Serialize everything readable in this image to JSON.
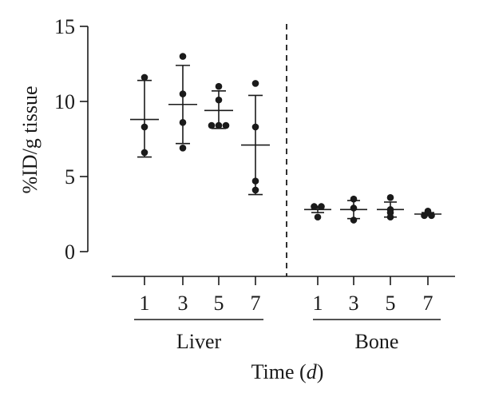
{
  "chart_data": {
    "type": "scatter",
    "ylabel": "%ID/g tissue",
    "xlabel_prefix": "Time (",
    "xlabel_unit": "d",
    "xlabel_suffix": ")",
    "ylim": [
      0,
      15
    ],
    "yticks": [
      "0",
      "5",
      "10",
      "15"
    ],
    "groups": [
      {
        "name": "Liver",
        "categories": [
          {
            "label": "1",
            "mean": 8.8,
            "sd_low": 6.3,
            "sd_high": 11.4,
            "points": [
              11.6,
              8.3,
              6.6
            ]
          },
          {
            "label": "3",
            "mean": 9.8,
            "sd_low": 7.2,
            "sd_high": 12.4,
            "points": [
              13.0,
              10.5,
              8.6,
              6.9
            ]
          },
          {
            "label": "5",
            "mean": 9.4,
            "sd_low": 8.2,
            "sd_high": 10.7,
            "points": [
              11.0,
              10.1,
              8.4,
              8.4,
              8.4
            ]
          },
          {
            "label": "7",
            "mean": 7.1,
            "sd_low": 3.8,
            "sd_high": 10.4,
            "points": [
              11.2,
              8.3,
              4.7,
              4.1
            ]
          }
        ]
      },
      {
        "name": "Bone",
        "categories": [
          {
            "label": "1",
            "mean": 2.8,
            "sd_low": 2.6,
            "sd_high": 3.0,
            "points": [
              3.0,
              3.0,
              2.3
            ]
          },
          {
            "label": "3",
            "mean": 2.8,
            "sd_low": 2.2,
            "sd_high": 3.4,
            "points": [
              3.5,
              2.9,
              2.1
            ]
          },
          {
            "label": "5",
            "mean": 2.8,
            "sd_low": 2.3,
            "sd_high": 3.3,
            "points": [
              3.6,
              2.8,
              2.6,
              2.3
            ]
          },
          {
            "label": "7",
            "mean": 2.5,
            "sd_low": 2.4,
            "sd_high": 2.6,
            "points": [
              2.7,
              2.4,
              2.4
            ]
          }
        ]
      }
    ],
    "divider": "dashed vertical line between Liver and Bone",
    "grid": false,
    "legend": "none"
  }
}
